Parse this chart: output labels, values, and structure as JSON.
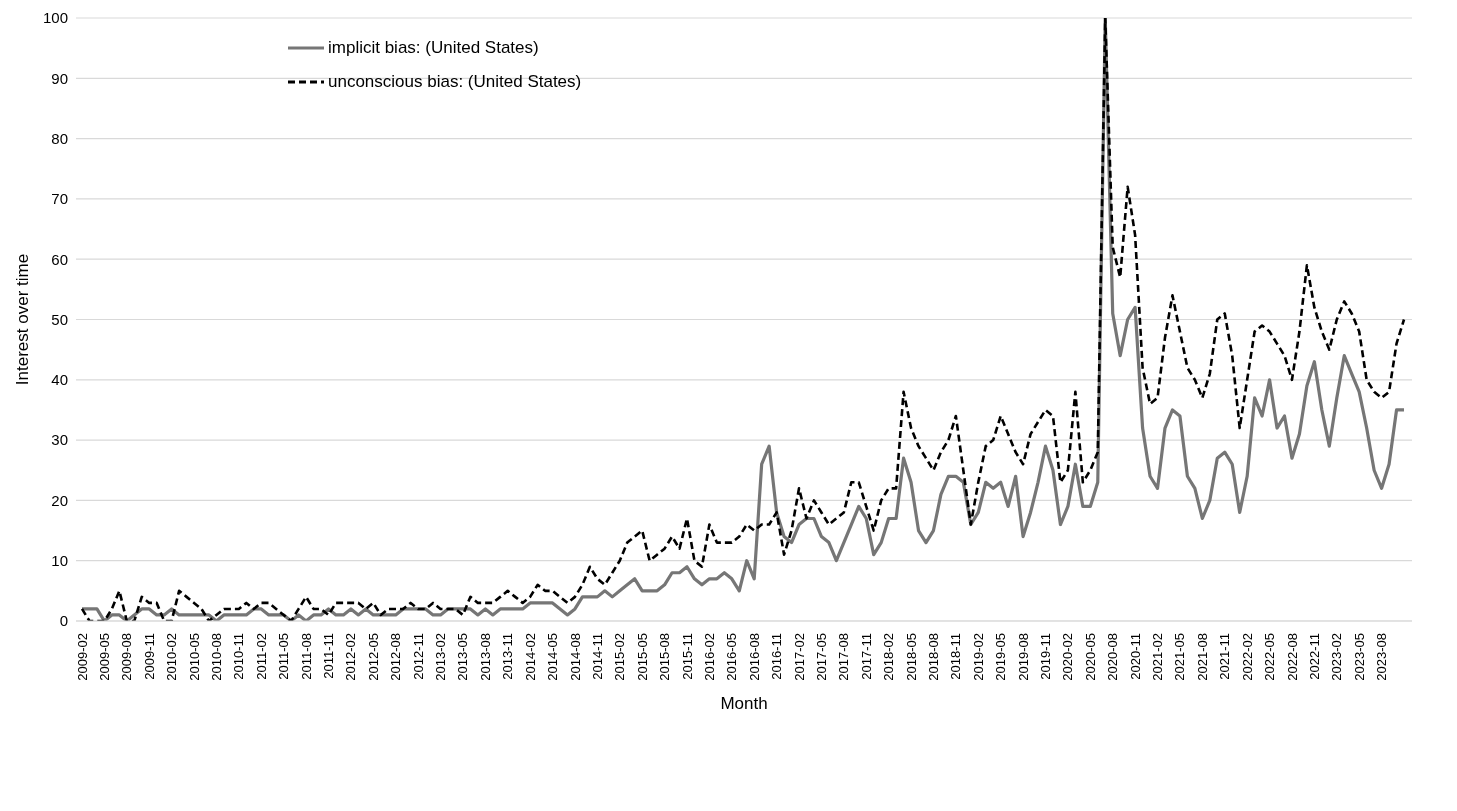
{
  "chart_data": {
    "type": "line",
    "xlabel": "Month",
    "ylabel": "Interest over time",
    "categories": [
      "2009-02",
      null,
      null,
      "2009-05",
      null,
      null,
      "2009-08",
      null,
      null,
      "2009-11",
      null,
      null,
      "2010-02",
      null,
      null,
      "2010-05",
      null,
      null,
      "2010-08",
      null,
      null,
      "2010-11",
      null,
      null,
      "2011-02",
      null,
      null,
      "2011-05",
      null,
      null,
      "2011-08",
      null,
      null,
      "2011-11",
      null,
      null,
      "2012-02",
      null,
      null,
      "2012-05",
      null,
      null,
      "2012-08",
      null,
      null,
      "2012-11",
      null,
      null,
      "2013-02",
      null,
      null,
      "2013-05",
      null,
      null,
      "2013-08",
      null,
      null,
      "2013-11",
      null,
      null,
      "2014-02",
      null,
      null,
      "2014-05",
      null,
      null,
      "2014-08",
      null,
      null,
      "2014-11",
      null,
      null,
      "2015-02",
      null,
      null,
      "2015-05",
      null,
      null,
      "2015-08",
      null,
      null,
      "2015-11",
      null,
      null,
      "2016-02",
      null,
      null,
      "2016-05",
      null,
      null,
      "2016-08",
      null,
      null,
      "2016-11",
      null,
      null,
      "2017-02",
      null,
      null,
      "2017-05",
      null,
      null,
      "2017-08",
      null,
      null,
      "2017-11",
      null,
      null,
      "2018-02",
      null,
      null,
      "2018-05",
      null,
      null,
      "2018-08",
      null,
      null,
      "2018-11",
      null,
      null,
      "2019-02",
      null,
      null,
      "2019-05",
      null,
      null,
      "2019-08",
      null,
      null,
      "2019-11",
      null,
      null,
      "2020-02",
      null,
      null,
      "2020-05",
      null,
      null,
      "2020-08",
      null,
      null,
      "2020-11",
      null,
      null,
      "2021-02",
      null,
      null,
      "2021-05",
      null,
      null,
      "2021-08",
      null,
      null,
      "2021-11",
      null,
      null,
      "2022-02",
      null,
      null,
      "2022-05",
      null,
      null,
      "2022-08",
      null,
      null,
      "2022-11",
      null,
      null,
      "2023-02",
      null,
      null,
      "2023-05",
      null,
      null,
      "2023-08",
      null,
      null,
      null
    ],
    "series": [
      {
        "name": "implicit bias: (United States)",
        "color": "#767676",
        "line_style": "solid",
        "values": [
          2,
          2,
          2,
          0,
          1,
          1,
          0,
          1,
          2,
          2,
          1,
          1,
          2,
          1,
          1,
          1,
          1,
          1,
          0,
          1,
          1,
          1,
          1,
          2,
          2,
          1,
          1,
          1,
          0,
          1,
          0,
          1,
          1,
          2,
          1,
          1,
          2,
          1,
          2,
          1,
          1,
          1,
          1,
          2,
          2,
          2,
          2,
          1,
          1,
          2,
          2,
          2,
          2,
          1,
          2,
          1,
          2,
          2,
          2,
          2,
          3,
          3,
          3,
          3,
          2,
          1,
          2,
          4,
          4,
          4,
          5,
          4,
          5,
          6,
          7,
          5,
          5,
          5,
          6,
          8,
          8,
          9,
          7,
          6,
          7,
          7,
          8,
          7,
          5,
          10,
          7,
          26,
          29,
          18,
          14,
          13,
          16,
          17,
          17,
          14,
          13,
          10,
          13,
          16,
          19,
          17,
          11,
          13,
          17,
          17,
          27,
          23,
          15,
          13,
          15,
          21,
          24,
          24,
          23,
          16,
          18,
          23,
          22,
          23,
          19,
          24,
          14,
          18,
          23,
          29,
          25,
          16,
          19,
          26,
          19,
          19,
          23,
          100,
          51,
          44,
          50,
          52,
          32,
          24,
          22,
          32,
          35,
          34,
          24,
          22,
          17,
          20,
          27,
          28,
          26,
          18,
          24,
          37,
          34,
          40,
          32,
          34,
          27,
          31,
          39,
          43,
          35,
          29,
          37,
          44,
          41,
          38,
          32,
          25,
          22,
          26,
          35,
          35
        ]
      },
      {
        "name": "unconscious bias: (United States)",
        "color": "#000000",
        "line_style": "dashed",
        "values": [
          2,
          0,
          0,
          0,
          2,
          5,
          0,
          0,
          4,
          3,
          3,
          0,
          0,
          5,
          4,
          3,
          2,
          0,
          1,
          2,
          2,
          2,
          3,
          2,
          3,
          3,
          2,
          1,
          0,
          2,
          4,
          2,
          2,
          1,
          3,
          3,
          3,
          3,
          2,
          3,
          1,
          2,
          2,
          2,
          3,
          2,
          2,
          3,
          2,
          2,
          2,
          1,
          4,
          3,
          3,
          3,
          4,
          5,
          4,
          3,
          4,
          6,
          5,
          5,
          4,
          3,
          4,
          6,
          9,
          7,
          6,
          8,
          10,
          13,
          14,
          15,
          10,
          11,
          12,
          14,
          12,
          17,
          10,
          9,
          16,
          13,
          13,
          13,
          14,
          16,
          15,
          16,
          16,
          18,
          11,
          15,
          22,
          17,
          20,
          18,
          16,
          17,
          18,
          23,
          23,
          19,
          15,
          20,
          22,
          22,
          38,
          32,
          29,
          27,
          25,
          28,
          30,
          34,
          25,
          16,
          23,
          29,
          30,
          34,
          31,
          28,
          26,
          31,
          33,
          35,
          34,
          23,
          25,
          38,
          23,
          25,
          28,
          100,
          62,
          57,
          72,
          64,
          42,
          36,
          37,
          47,
          54,
          48,
          42,
          40,
          37,
          41,
          50,
          51,
          44,
          32,
          40,
          48,
          49,
          48,
          46,
          44,
          40,
          48,
          59,
          52,
          48,
          45,
          50,
          53,
          51,
          48,
          40,
          38,
          37,
          38,
          46,
          50
        ]
      }
    ],
    "ylim": [
      0,
      100
    ],
    "yticks": [
      0,
      10,
      20,
      30,
      40,
      50,
      60,
      70,
      80,
      90,
      100
    ],
    "grid": "y",
    "legend": "top left"
  }
}
